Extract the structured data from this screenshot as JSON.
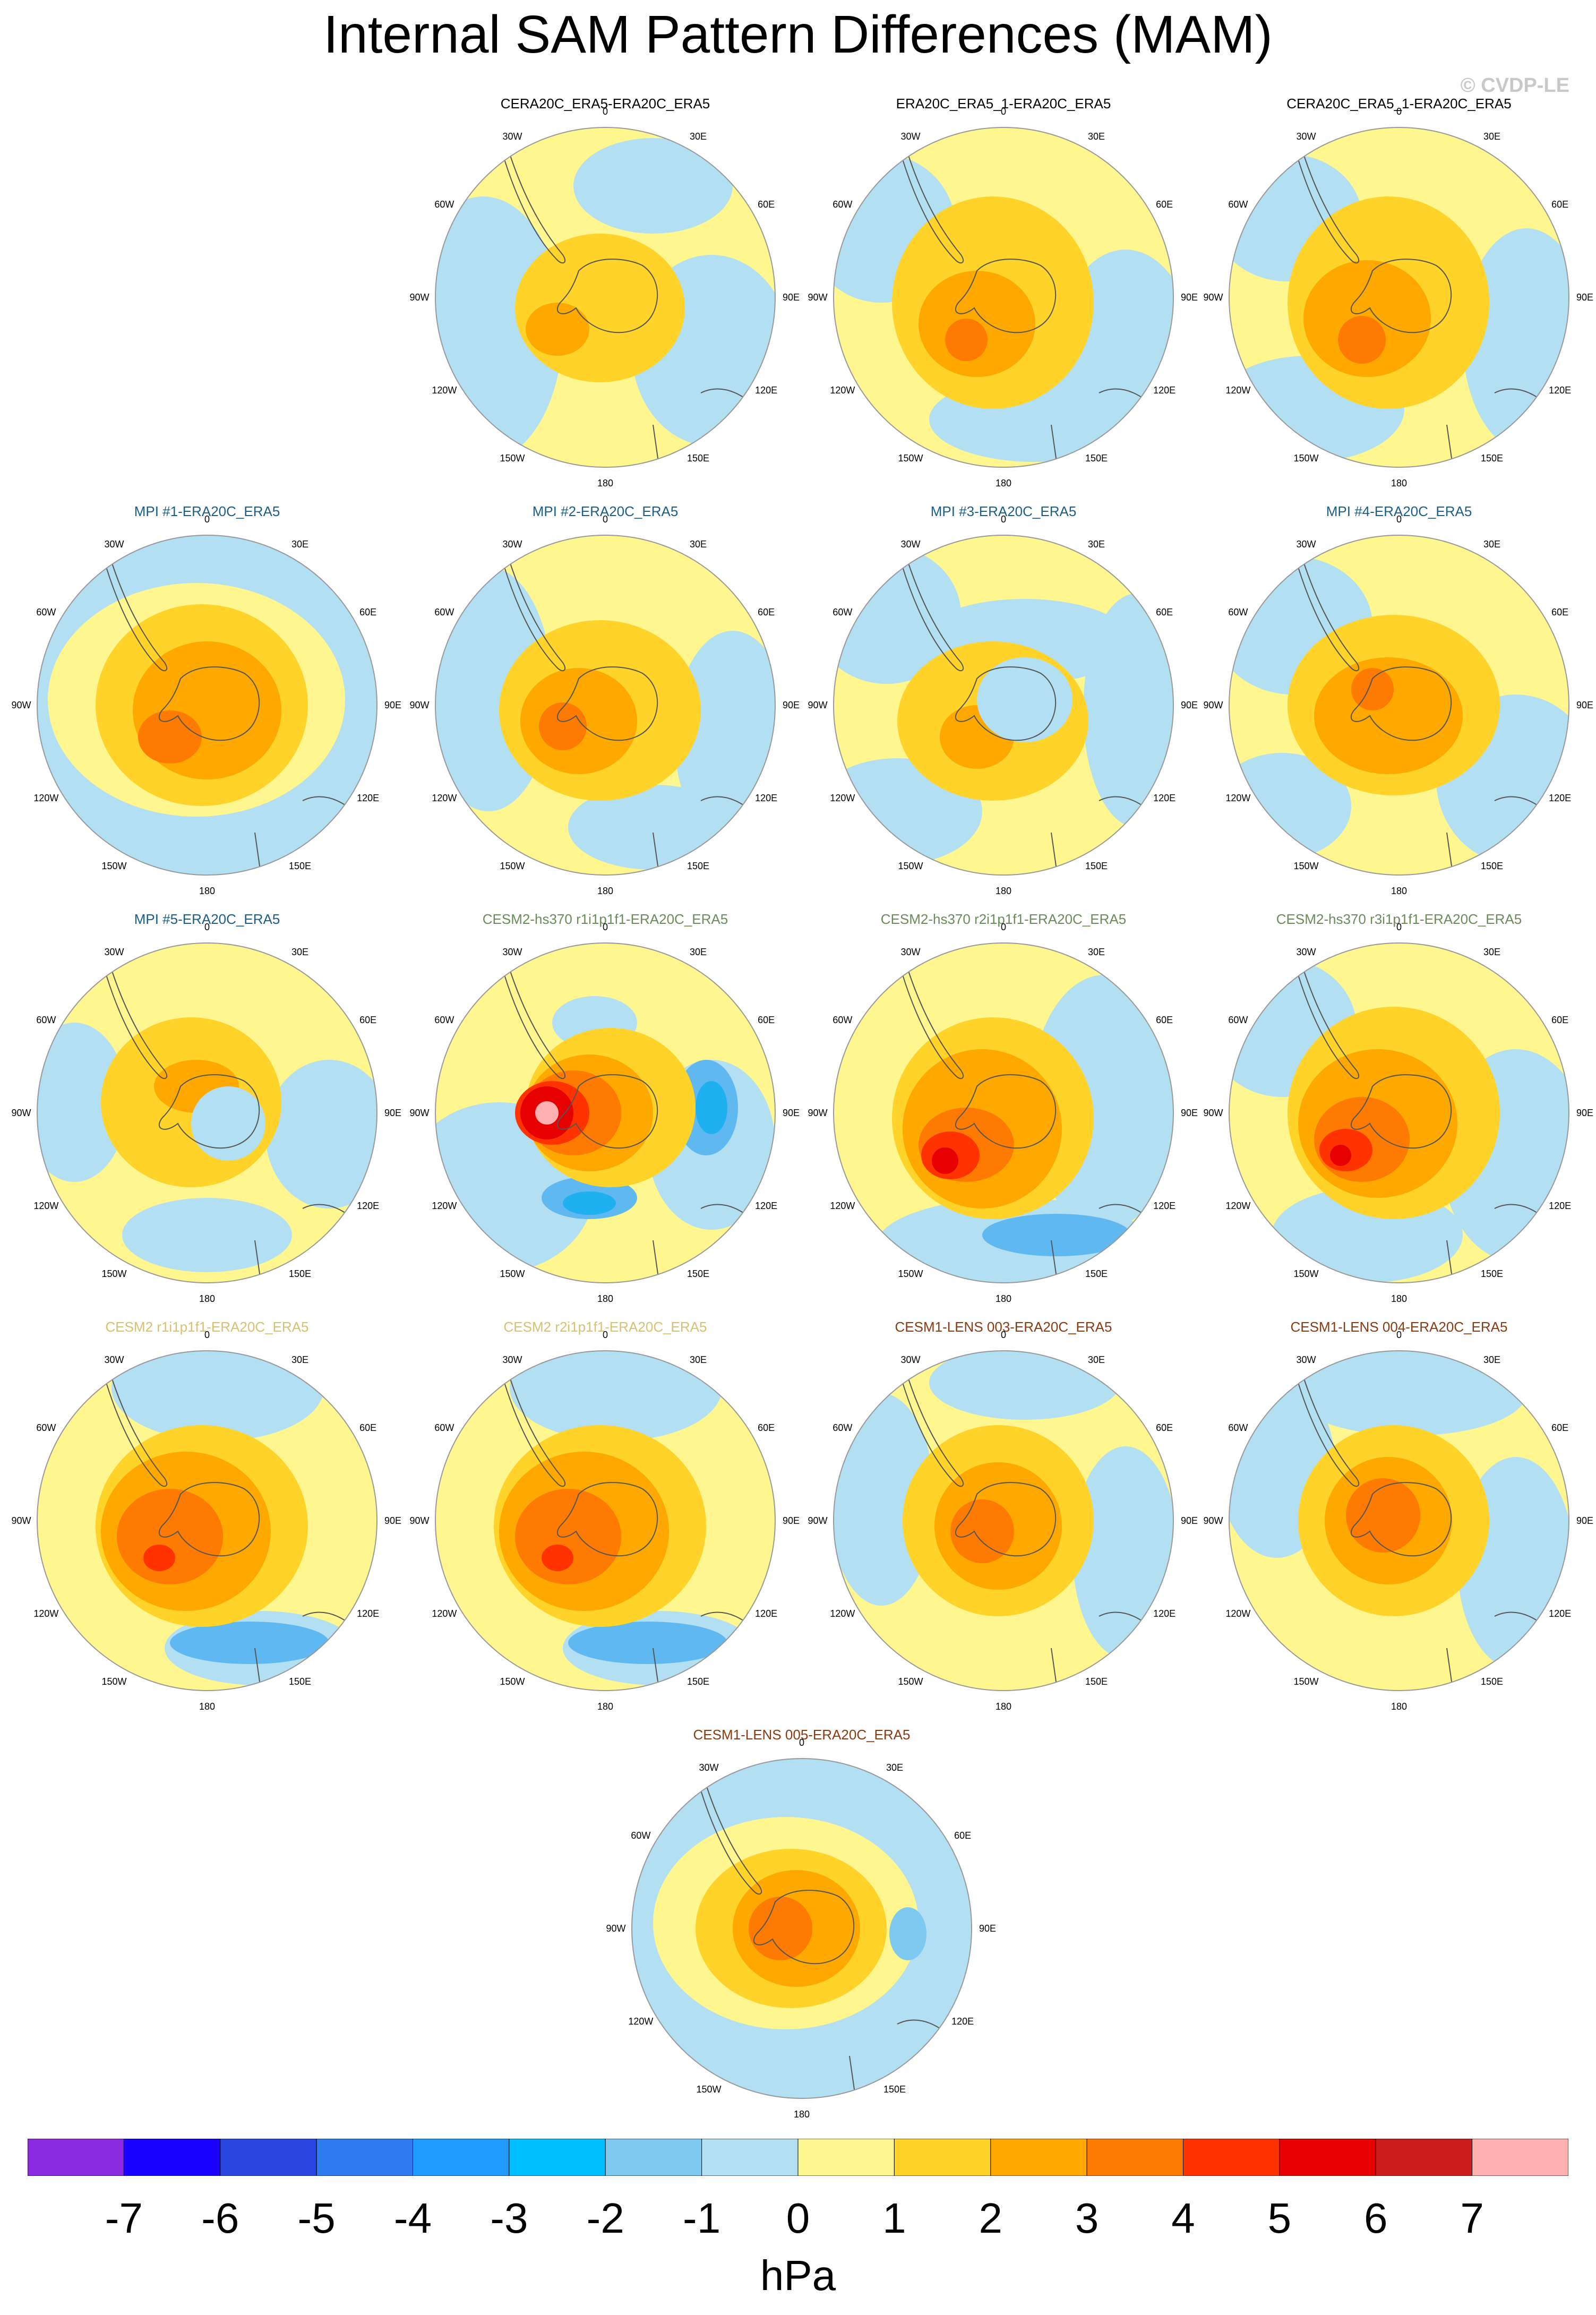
{
  "title": "Internal SAM Pattern Differences (MAM)",
  "credit": "© CVDP-LE",
  "tick_labels": {
    "top": "0",
    "top_right": "30E",
    "top_left": "30W",
    "right_upper": "60E",
    "left_upper": "60W",
    "right": "90E",
    "left": "90W",
    "right_lower": "120E",
    "left_lower": "120W",
    "bottom_right": "150E",
    "bottom_left": "150W",
    "bottom": "180"
  },
  "panels": [
    {
      "title": "CERA20C_ERA5-ERA20C_ERA5",
      "color": "#000000",
      "style": "cera"
    },
    {
      "title": "ERA20C_ERA5_1-ERA20C_ERA5",
      "color": "#000000",
      "style": "era1"
    },
    {
      "title": "CERA20C_ERA5_1-ERA20C_ERA5",
      "color": "#000000",
      "style": "cera1"
    },
    {
      "title": "MPI #1-ERA20C_ERA5",
      "color": "#1a5e8a",
      "style": "mpi1"
    },
    {
      "title": "MPI #2-ERA20C_ERA5",
      "color": "#1a5e8a",
      "style": "mpi2"
    },
    {
      "title": "MPI #3-ERA20C_ERA5",
      "color": "#1a5e8a",
      "style": "mpi3"
    },
    {
      "title": "MPI #4-ERA20C_ERA5",
      "color": "#1a5e8a",
      "style": "mpi4"
    },
    {
      "title": "MPI #5-ERA20C_ERA5",
      "color": "#1a5e8a",
      "style": "mpi5"
    },
    {
      "title": "CESM2-hs370 r1i1p1f1-ERA20C_ERA5",
      "color": "#6a8c5a",
      "style": "hs1"
    },
    {
      "title": "CESM2-hs370 r2i1p1f1-ERA20C_ERA5",
      "color": "#6a8c5a",
      "style": "hs2"
    },
    {
      "title": "CESM2-hs370 r3i1p1f1-ERA20C_ERA5",
      "color": "#6a8c5a",
      "style": "hs3"
    },
    {
      "title": "CESM2 r1i1p1f1-ERA20C_ERA5",
      "color": "#d8c070",
      "style": "c2r1"
    },
    {
      "title": "CESM2 r2i1p1f1-ERA20C_ERA5",
      "color": "#d8c070",
      "style": "c2r2"
    },
    {
      "title": "CESM1-LENS 003-ERA20C_ERA5",
      "color": "#8a3a10",
      "style": "l3"
    },
    {
      "title": "CESM1-LENS 004-ERA20C_ERA5",
      "color": "#8a3a10",
      "style": "l4"
    },
    {
      "title": "CESM1-LENS 005-ERA20C_ERA5",
      "color": "#8a3a10",
      "style": "l5"
    }
  ],
  "colorbar": {
    "colors": [
      "#8a2be2",
      "#1a00ff",
      "#2b46e0",
      "#2f7cf0",
      "#1f9bff",
      "#00bfff",
      "#7ec9f0",
      "#b3dff2",
      "#fff68f",
      "#ffd32a",
      "#ffa800",
      "#ff7a00",
      "#ff3300",
      "#e60000",
      "#cc1c1c",
      "#ffb0b0"
    ],
    "labels": [
      "-7",
      "-6",
      "-5",
      "-4",
      "-3",
      "-2",
      "-1",
      "0",
      "1",
      "2",
      "3",
      "4",
      "5",
      "6",
      "7"
    ]
  },
  "units": "hPa"
}
